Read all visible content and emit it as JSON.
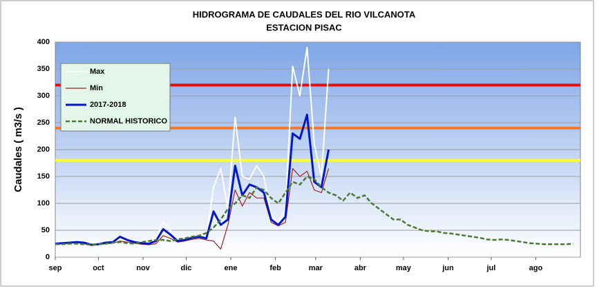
{
  "chart_data": {
    "type": "line",
    "title": "HIDROGRAMA DE CAUDALES DEL RIO  VILCANOTA",
    "subtitle": "ESTACION  PISAC",
    "y_label": "Caudales ( m3/s )",
    "xlim": [
      0,
      365
    ],
    "ylim": [
      0,
      400
    ],
    "yticks": [
      0,
      50,
      100,
      150,
      200,
      250,
      300,
      350,
      400
    ],
    "xticks": [
      {
        "value": 0,
        "label": "sep"
      },
      {
        "value": 30,
        "label": "oct"
      },
      {
        "value": 61,
        "label": "nov"
      },
      {
        "value": 91,
        "label": "dic"
      },
      {
        "value": 122,
        "label": "ene"
      },
      {
        "value": 153,
        "label": "feb"
      },
      {
        "value": 181,
        "label": "mar"
      },
      {
        "value": 212,
        "label": "abr"
      },
      {
        "value": 242,
        "label": "may"
      },
      {
        "value": 273,
        "label": "jun"
      },
      {
        "value": 303,
        "label": "jul"
      },
      {
        "value": 334,
        "label": "ago"
      }
    ],
    "grid": true,
    "thresholds": [
      {
        "value": 320,
        "color": "#e01010"
      },
      {
        "value": 240,
        "color": "#f07a30"
      },
      {
        "value": 180,
        "color": "#ffff20"
      }
    ],
    "x": [
      0,
      5,
      10,
      15,
      20,
      25,
      30,
      35,
      40,
      45,
      50,
      55,
      60,
      65,
      70,
      75,
      80,
      85,
      90,
      95,
      100,
      105,
      110,
      115,
      120,
      125,
      130,
      135,
      140,
      145,
      150,
      155,
      160,
      165,
      170,
      175,
      180,
      185,
      190,
      195,
      200,
      205,
      210,
      215,
      220,
      225,
      230,
      235,
      240,
      245,
      250,
      255,
      260,
      265,
      270,
      275,
      280,
      285,
      290,
      295,
      300,
      305,
      310,
      315,
      320,
      325,
      330,
      335,
      340,
      345,
      350,
      355,
      360
    ],
    "series": [
      {
        "name": "Max",
        "color": "#ffffff",
        "width": 2,
        "dash": false,
        "values": [
          26,
          27,
          28,
          29,
          28,
          24,
          25,
          28,
          30,
          40,
          33,
          29,
          27,
          26,
          35,
          65,
          50,
          32,
          34,
          38,
          40,
          38,
          130,
          165,
          90,
          260,
          150,
          145,
          170,
          150,
          80,
          62,
          90,
          355,
          300,
          390,
          210,
          150,
          350,
          null,
          null,
          null,
          null,
          null,
          null,
          null,
          null,
          null,
          null,
          null,
          null,
          null,
          null,
          null,
          null,
          null,
          null,
          null,
          null,
          null,
          null,
          null,
          null,
          null,
          null,
          null,
          null,
          null,
          null,
          null,
          null,
          null,
          null
        ]
      },
      {
        "name": "Min",
        "color": "#a02020",
        "width": 1.2,
        "dash": false,
        "values": [
          24,
          25,
          26,
          27,
          25,
          22,
          23,
          25,
          26,
          30,
          28,
          26,
          24,
          23,
          25,
          40,
          35,
          28,
          30,
          33,
          35,
          32,
          30,
          15,
          60,
          125,
          95,
          120,
          110,
          110,
          65,
          58,
          65,
          165,
          150,
          160,
          125,
          120,
          165,
          null,
          null,
          null,
          null,
          null,
          null,
          null,
          null,
          null,
          null,
          null,
          null,
          null,
          null,
          null,
          null,
          null,
          null,
          null,
          null,
          null,
          null,
          null,
          null,
          null,
          null,
          null,
          null,
          null,
          null,
          null,
          null,
          null,
          null
        ]
      },
      {
        "name": "2017-2018",
        "color": "#0018c8",
        "width": 3,
        "dash": false,
        "values": [
          25,
          26,
          27,
          28,
          27,
          23,
          24,
          27,
          28,
          38,
          32,
          28,
          26,
          25,
          30,
          52,
          42,
          30,
          32,
          36,
          38,
          35,
          85,
          60,
          70,
          170,
          115,
          135,
          130,
          120,
          70,
          60,
          75,
          230,
          220,
          265,
          140,
          130,
          200,
          null,
          null,
          null,
          null,
          null,
          null,
          null,
          null,
          null,
          null,
          null,
          null,
          null,
          null,
          null,
          null,
          null,
          null,
          null,
          null,
          null,
          null,
          null,
          null,
          null,
          null,
          null,
          null,
          null,
          null,
          null,
          null,
          null,
          null
        ]
      },
      {
        "name": "NORMAL HISTORICO",
        "color": "#4a7a30",
        "width": 2.5,
        "dash": true,
        "values": [
          24,
          24,
          25,
          25,
          24,
          23,
          24,
          25,
          27,
          28,
          26,
          25,
          28,
          30,
          32,
          32,
          30,
          33,
          35,
          38,
          40,
          45,
          55,
          70,
          90,
          100,
          115,
          110,
          130,
          125,
          110,
          100,
          120,
          140,
          135,
          150,
          145,
          130,
          120,
          115,
          105,
          120,
          110,
          115,
          100,
          90,
          80,
          70,
          70,
          60,
          55,
          50,
          48,
          48,
          45,
          44,
          42,
          40,
          38,
          36,
          33,
          32,
          33,
          32,
          30,
          28,
          26,
          25,
          24,
          24,
          24,
          24,
          25
        ]
      }
    ]
  }
}
